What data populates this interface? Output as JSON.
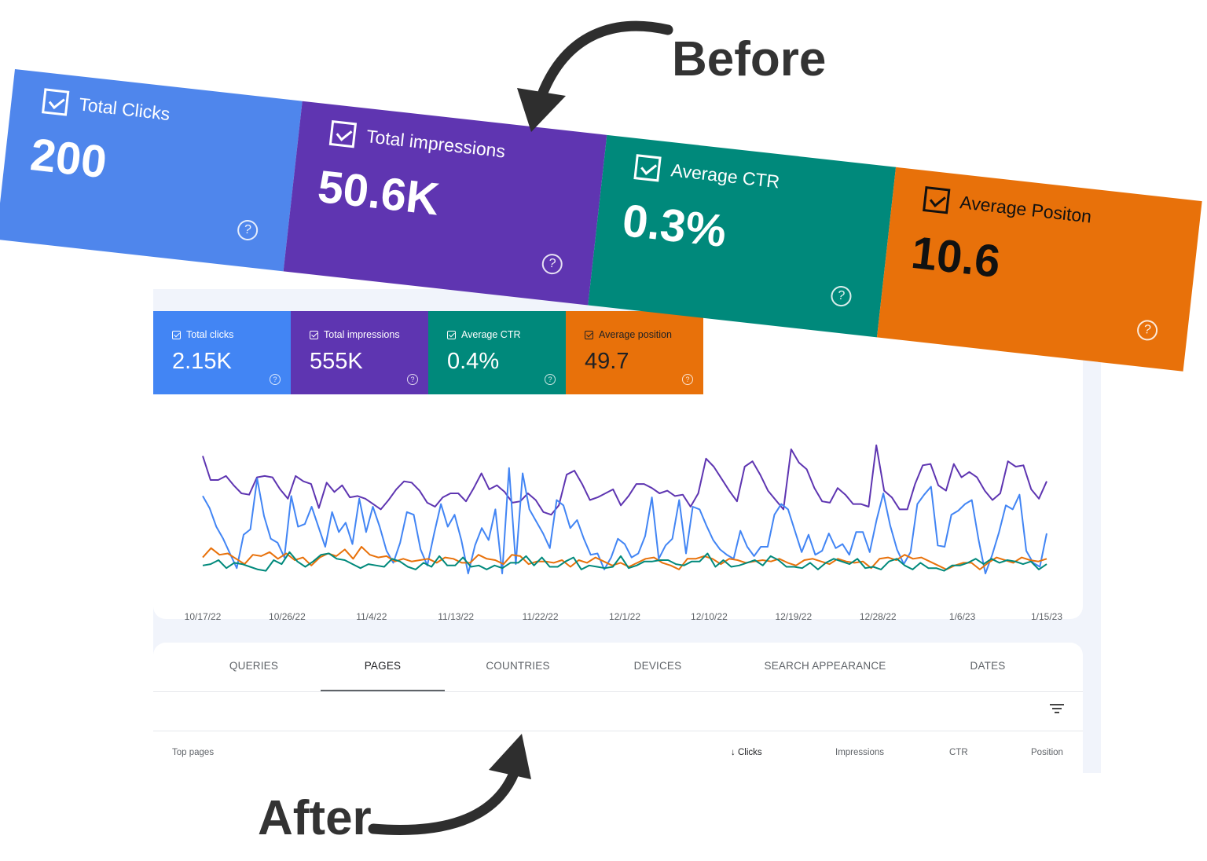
{
  "captions": {
    "before": "Before",
    "after": "After"
  },
  "before_metrics": [
    {
      "label": "Total Clicks",
      "value": "200",
      "color": "#4f86ec"
    },
    {
      "label": "Total impressions",
      "value": "50.6K",
      "color": "#5f35b1"
    },
    {
      "label": "Average CTR",
      "value": "0.3%",
      "color": "#00897b"
    },
    {
      "label": "Average Positon",
      "value": "10.6",
      "color": "#e8710a"
    }
  ],
  "after_metrics": [
    {
      "label": "Total clicks",
      "value": "2.15K",
      "color": "#4285f4"
    },
    {
      "label": "Total impressions",
      "value": "555K",
      "color": "#5e35b1"
    },
    {
      "label": "Average CTR",
      "value": "0.4%",
      "color": "#00897b"
    },
    {
      "label": "Average position",
      "value": "49.7",
      "color": "#e8710a"
    }
  ],
  "help_glyph": "?",
  "tabs": [
    "QUERIES",
    "PAGES",
    "COUNTRIES",
    "DEVICES",
    "SEARCH APPEARANCE",
    "DATES"
  ],
  "active_tab": "PAGES",
  "table_headers": {
    "first": "Top pages",
    "clicks": "Clicks",
    "impressions": "Impressions",
    "ctr": "CTR",
    "position": "Position",
    "sort_glyph": "↓"
  },
  "chart_data": {
    "type": "line",
    "x_ticks": [
      "10/17/22",
      "10/26/22",
      "11/4/22",
      "11/13/22",
      "11/22/22",
      "12/1/22",
      "12/10/22",
      "12/19/22",
      "12/28/22",
      "1/6/23",
      "1/15/23"
    ],
    "series": [
      {
        "color": "#5e35b1",
        "values": [
          88,
          70,
          70,
          73,
          66,
          60,
          59,
          72,
          73,
          72,
          63,
          56,
          73,
          69,
          67,
          49,
          68,
          61,
          66,
          57,
          58,
          56,
          52,
          48,
          55,
          63,
          69,
          68,
          62,
          53,
          50,
          57,
          60,
          60,
          54,
          64,
          75,
          63,
          66,
          61,
          53,
          54,
          60,
          55,
          46,
          44,
          51,
          74,
          77,
          67,
          55,
          57,
          60,
          63,
          51,
          58,
          67,
          67,
          64,
          60,
          62,
          58,
          59,
          50,
          60,
          86,
          80,
          71,
          62,
          54,
          80,
          84,
          74,
          62,
          55,
          48,
          93,
          83,
          78,
          64,
          54,
          53,
          64,
          59,
          52,
          52,
          50,
          96,
          62,
          57,
          48,
          48,
          67,
          81,
          82,
          66,
          62,
          82,
          72,
          76,
          72,
          62,
          55,
          60,
          84,
          80,
          81,
          63,
          56,
          69
        ]
      },
      {
        "color": "#4285f4",
        "values": [
          58,
          49,
          35,
          26,
          15,
          4,
          29,
          33,
          71,
          43,
          26,
          23,
          12,
          58,
          35,
          37,
          50,
          35,
          20,
          46,
          31,
          38,
          22,
          56,
          31,
          50,
          35,
          17,
          8,
          23,
          46,
          44,
          18,
          6,
          30,
          52,
          35,
          44,
          25,
          0,
          21,
          34,
          25,
          48,
          0,
          79,
          7,
          75,
          48,
          39,
          30,
          19,
          55,
          51,
          34,
          40,
          26,
          14,
          15,
          3,
          12,
          26,
          22,
          12,
          15,
          28,
          57,
          11,
          21,
          26,
          55,
          15,
          50,
          48,
          36,
          25,
          18,
          14,
          11,
          32,
          20,
          13,
          20,
          20,
          44,
          52,
          48,
          32,
          16,
          29,
          14,
          17,
          30,
          19,
          22,
          14,
          31,
          31,
          16,
          40,
          60,
          36,
          18,
          7,
          16,
          52,
          59,
          65,
          21,
          20,
          44,
          47,
          52,
          55,
          25,
          0,
          14,
          31,
          51,
          48,
          59,
          17,
          8,
          5,
          30
        ]
      },
      {
        "color": "#e8710a",
        "values": [
          12,
          19,
          14,
          15,
          11,
          7,
          14,
          13,
          16,
          11,
          15,
          10,
          12,
          6,
          12,
          15,
          13,
          18,
          11,
          20,
          14,
          12,
          13,
          9,
          11,
          9,
          10,
          11,
          8,
          12,
          11,
          8,
          8,
          14,
          11,
          10,
          7,
          14,
          13,
          7,
          9,
          9,
          8,
          10,
          5,
          10,
          8,
          12,
          9,
          6,
          8,
          5,
          8,
          11,
          12,
          8,
          6,
          3,
          11,
          11,
          13,
          11,
          7,
          11,
          10,
          8,
          9,
          10,
          9,
          11,
          8,
          6,
          10,
          11,
          9,
          7,
          11,
          9,
          8,
          9,
          4,
          11,
          12,
          10,
          14,
          11,
          12,
          9,
          6,
          3,
          6,
          8,
          8,
          3,
          8,
          12,
          10,
          8,
          12,
          10,
          9,
          11
        ]
      },
      {
        "color": "#00897b",
        "values": [
          6,
          7,
          10,
          4,
          8,
          7,
          5,
          3,
          2,
          10,
          7,
          16,
          9,
          5,
          9,
          14,
          15,
          11,
          10,
          7,
          4,
          7,
          6,
          5,
          11,
          9,
          5,
          3,
          8,
          5,
          13,
          6,
          6,
          12,
          5,
          6,
          3,
          6,
          4,
          8,
          8,
          13,
          6,
          12,
          5,
          5,
          9,
          12,
          3,
          6,
          5,
          4,
          5,
          13,
          4,
          6,
          9,
          9,
          10,
          10,
          7,
          6,
          9,
          9,
          15,
          5,
          10,
          5,
          6,
          8,
          10,
          6,
          13,
          10,
          5,
          5,
          4,
          8,
          3,
          8,
          11,
          9,
          7,
          11,
          4,
          5,
          3,
          9,
          11,
          6,
          3,
          8,
          4,
          4,
          2,
          6,
          6,
          8,
          11,
          7,
          11,
          8,
          10,
          9,
          7,
          9,
          3,
          7
        ]
      }
    ]
  }
}
